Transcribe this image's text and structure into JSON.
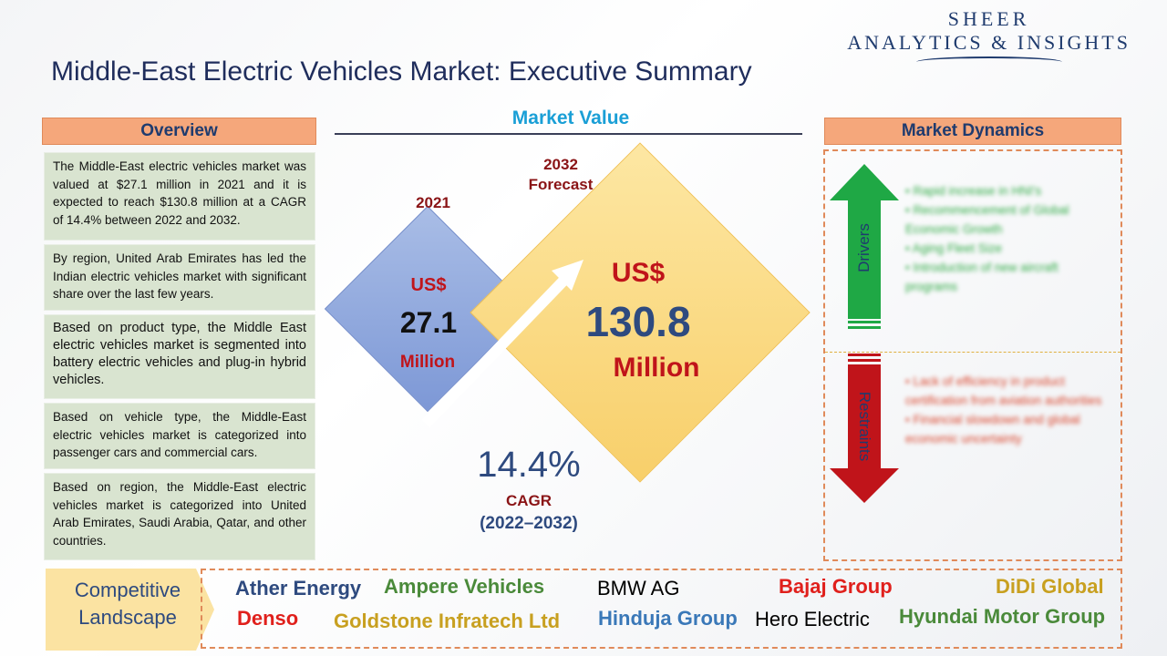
{
  "logo": {
    "line1": "SHEER",
    "line2": "ANALYTICS & INSIGHTS"
  },
  "title": "Middle-East Electric Vehicles Market: Executive Summary",
  "overview": {
    "header": "Overview",
    "paragraphs": [
      "The Middle-East electric vehicles market was valued at $27.1 million in 2021 and it is expected to reach $130.8 million at a CAGR of 14.4% between 2022 and 2032.",
      "By region, United Arab Emirates has led the Indian electric vehicles market with significant share over the last few years.",
      "Based on product type, the Middle East electric vehicles market is segmented into battery electric vehicles and plug-in hybrid vehicles.",
      "Based on vehicle type, the Middle-East electric vehicles market is categorized into passenger cars and commercial cars.",
      "Based on region, the Middle-East electric vehicles market is categorized into United Arab Emirates, Saudi Arabia, Qatar, and other countries."
    ]
  },
  "market_value": {
    "header": "Market Value",
    "small": {
      "year": "2021",
      "currency": "US$",
      "value": "27.1",
      "unit": "Million"
    },
    "big": {
      "year_line1": "2032",
      "year_line2": "Forecast",
      "currency": "US$",
      "value": "130.8",
      "unit": "Million"
    },
    "cagr": {
      "value": "14.4%",
      "label": "CAGR",
      "period": "(2022–2032)"
    }
  },
  "dynamics": {
    "header": "Market Dynamics",
    "drivers_label": "Drivers",
    "restraints_label": "Restraints",
    "drivers": [
      "Rapid increase in HNI's",
      "Recommencement of Global Economic Growth",
      "Aging Fleet Size",
      "Introduction of new aircraft programs"
    ],
    "restraints": [
      "Lack of efficiency in product certification from aviation authorities",
      "Financial slowdown and global economic uncertainty"
    ],
    "colors": {
      "drivers": "#1fa845",
      "restraints": "#c0141a"
    }
  },
  "competitive": {
    "label_line1": "Competitive",
    "label_line2": "Landscape",
    "companies": [
      {
        "name": "Ather Energy",
        "color": "#2e4a7f"
      },
      {
        "name": "Ampere Vehicles",
        "color": "#4a8a3a"
      },
      {
        "name": "BMW AG",
        "color": "#000000"
      },
      {
        "name": "Bajaj Group",
        "color": "#e0201c"
      },
      {
        "name": "DiDi Global",
        "color": "#c8a020"
      },
      {
        "name": "Denso",
        "color": "#e0201c"
      },
      {
        "name": "Goldstone Infratech Ltd",
        "color": "#c8a020"
      },
      {
        "name": "Hinduja Group",
        "color": "#3a78b8"
      },
      {
        "name": "Hero Electric",
        "color": "#000000"
      },
      {
        "name": "Hyundai Motor Group",
        "color": "#4a8a3a"
      }
    ]
  }
}
